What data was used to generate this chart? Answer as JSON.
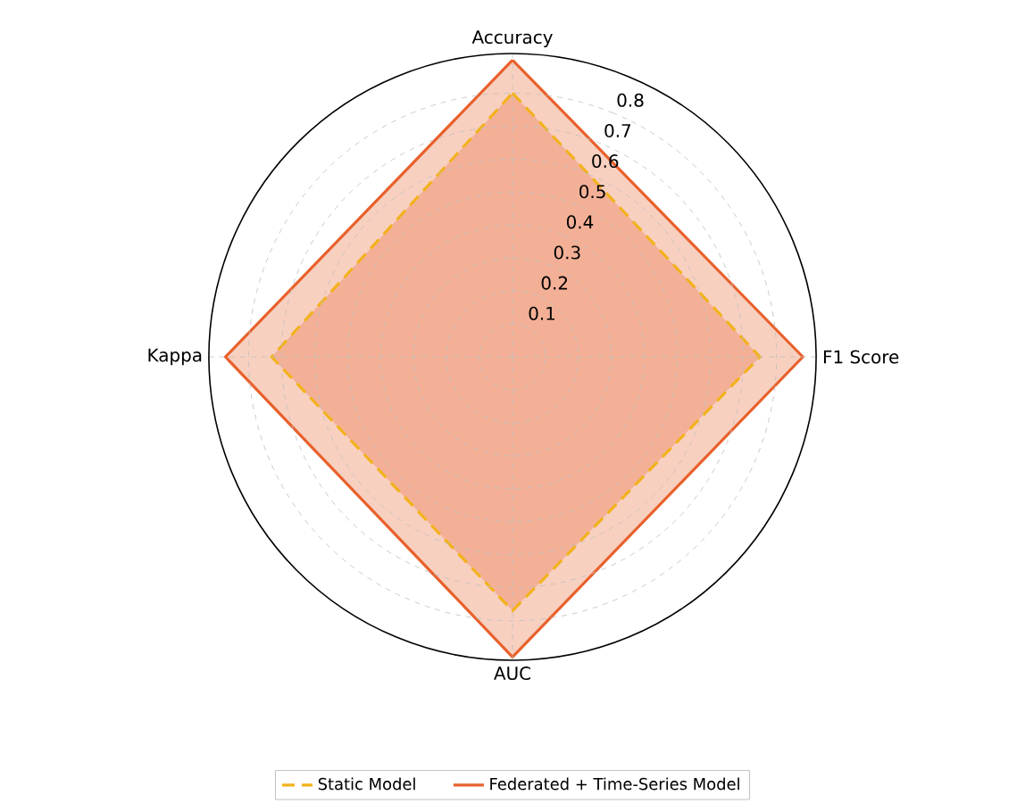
{
  "chart_data": {
    "type": "radar",
    "categories": [
      "Accuracy",
      "F1 Score",
      "AUC",
      "Kappa"
    ],
    "series": [
      {
        "name": "Static Model",
        "color": "#f2b21c",
        "values": [
          0.8,
          0.75,
          0.77,
          0.73
        ],
        "line_style": "dashed"
      },
      {
        "name": "Federated + Time-Series Model",
        "color": "#e8612c",
        "values": [
          0.9,
          0.88,
          0.91,
          0.87
        ],
        "line_style": "solid"
      }
    ],
    "ylim": [
      0,
      0.92
    ],
    "yticks": [
      0.1,
      0.2,
      0.3,
      0.4,
      0.5,
      0.6,
      0.7,
      0.8
    ],
    "grid": true,
    "legend": "bottom",
    "marker": "none"
  }
}
